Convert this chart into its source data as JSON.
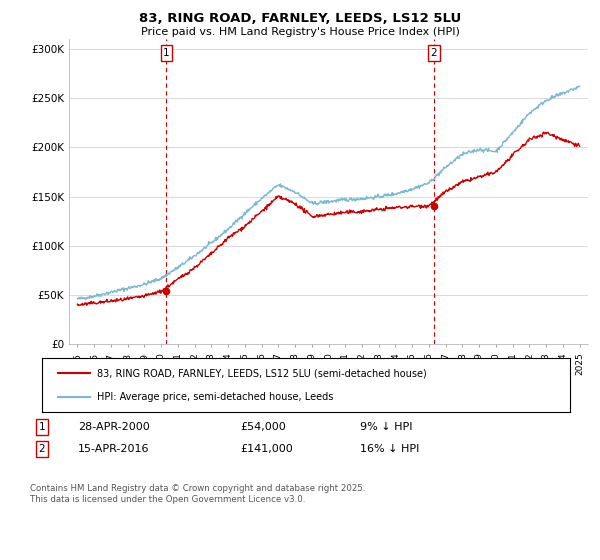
{
  "title1": "83, RING ROAD, FARNLEY, LEEDS, LS12 5LU",
  "title2": "Price paid vs. HM Land Registry's House Price Index (HPI)",
  "legend1": "83, RING ROAD, FARNLEY, LEEDS, LS12 5LU (semi-detached house)",
  "legend2": "HPI: Average price, semi-detached house, Leeds",
  "footnote": "Contains HM Land Registry data © Crown copyright and database right 2025.\nThis data is licensed under the Open Government Licence v3.0.",
  "sale1_label": "1",
  "sale1_date": "28-APR-2000",
  "sale1_price": "£54,000",
  "sale1_note": "9% ↓ HPI",
  "sale2_label": "2",
  "sale2_date": "15-APR-2016",
  "sale2_price": "£141,000",
  "sale2_note": "16% ↓ HPI",
  "sale1_x": 2000.32,
  "sale1_y": 54000,
  "sale2_x": 2016.29,
  "sale2_y": 141000,
  "hpi_color": "#7ab8d4",
  "sale_color": "#cc0000",
  "vline_color": "#cc0000",
  "grid_color": "#cccccc",
  "background": "#ffffff",
  "ylim": [
    0,
    310000
  ],
  "xlim": [
    1994.5,
    2025.5
  ],
  "yticks": [
    0,
    50000,
    100000,
    150000,
    200000,
    250000,
    300000
  ],
  "xticks": [
    1995,
    1996,
    1997,
    1998,
    1999,
    2000,
    2001,
    2002,
    2003,
    2004,
    2005,
    2006,
    2007,
    2008,
    2009,
    2010,
    2011,
    2012,
    2013,
    2014,
    2015,
    2016,
    2017,
    2018,
    2019,
    2020,
    2021,
    2022,
    2023,
    2024,
    2025
  ],
  "hpi_key_x": [
    1995,
    1996,
    1997,
    1998,
    1999,
    2000,
    2001,
    2002,
    2003,
    2004,
    2005,
    2006,
    2007,
    2008,
    2009,
    2010,
    2011,
    2012,
    2013,
    2014,
    2015,
    2016,
    2017,
    2018,
    2019,
    2020,
    2021,
    2022,
    2023,
    2024,
    2025
  ],
  "hpi_key_y": [
    46000,
    49000,
    53000,
    57000,
    61000,
    67000,
    78000,
    90000,
    103000,
    117000,
    133000,
    148000,
    162000,
    155000,
    143000,
    145000,
    147000,
    148000,
    150000,
    153000,
    158000,
    164000,
    180000,
    193000,
    198000,
    196000,
    215000,
    235000,
    248000,
    255000,
    262000
  ],
  "prop_key_x": [
    1995,
    1996,
    1997,
    1998,
    1999,
    2000,
    2001,
    2002,
    2003,
    2004,
    2005,
    2006,
    2007,
    2008,
    2009,
    2010,
    2011,
    2012,
    2013,
    2014,
    2015,
    2016,
    2017,
    2018,
    2019,
    2020,
    2021,
    2022,
    2023,
    2024,
    2025
  ],
  "prop_key_y": [
    40000,
    42000,
    44000,
    46000,
    49000,
    54000,
    66000,
    78000,
    92000,
    108000,
    120000,
    135000,
    150000,
    143000,
    130000,
    132000,
    134000,
    135000,
    137000,
    139000,
    140000,
    141000,
    155000,
    165000,
    170000,
    175000,
    192000,
    208000,
    215000,
    208000,
    202000
  ]
}
